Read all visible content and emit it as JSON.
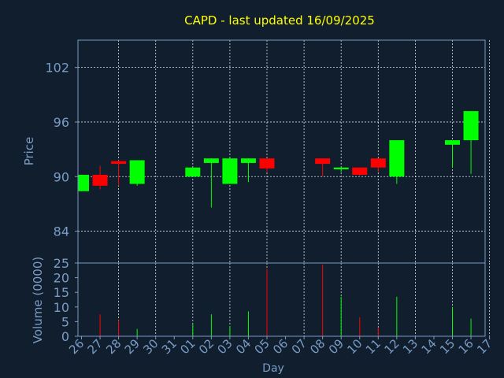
{
  "chart_data": {
    "type": "candlestick",
    "title": "CAPD - last updated 16/09/2025",
    "xlabel": "Day",
    "price_panel": {
      "ylabel": "Price",
      "yticks": [
        84,
        90,
        96,
        102
      ],
      "ylim": [
        80.5,
        105.0
      ]
    },
    "volume_panel": {
      "ylabel": "Volume (0000)",
      "yticks": [
        0,
        5,
        10,
        15,
        20,
        25
      ],
      "ylim": [
        0,
        25
      ]
    },
    "days": [
      "26",
      "27",
      "28",
      "29",
      "30",
      "31",
      "01",
      "02",
      "03",
      "04",
      "05",
      "06",
      "07",
      "08",
      "09",
      "10",
      "11",
      "12",
      "13",
      "14",
      "15",
      "16",
      "17"
    ],
    "candles": [
      {
        "day": 0,
        "open": 88.4,
        "close": 90.2,
        "high": 90.2,
        "low": 88.4,
        "volume": 0
      },
      {
        "day": 1,
        "open": 90.2,
        "close": 89.0,
        "high": 91.2,
        "low": 88.6,
        "volume": 7.5
      },
      {
        "day": 2,
        "open": 91.7,
        "close": 91.4,
        "high": 91.8,
        "low": 89.0,
        "volume": 5.5
      },
      {
        "day": 3,
        "open": 89.2,
        "close": 91.8,
        "high": 91.8,
        "low": 89.0,
        "volume": 2.5
      },
      {
        "day": 6,
        "open": 90.0,
        "close": 91.0,
        "high": 91.0,
        "low": 90.0,
        "volume": 4.0
      },
      {
        "day": 7,
        "open": 91.5,
        "close": 92.0,
        "high": 92.0,
        "low": 86.6,
        "volume": 7.5
      },
      {
        "day": 8,
        "open": 89.2,
        "close": 92.0,
        "high": 92.0,
        "low": 89.2,
        "volume": 3.5
      },
      {
        "day": 9,
        "open": 91.5,
        "close": 92.0,
        "high": 92.0,
        "low": 89.4,
        "volume": 8.5
      },
      {
        "day": 10,
        "open": 92.0,
        "close": 90.9,
        "high": 92.0,
        "low": 90.5,
        "volume": 23.0
      },
      {
        "day": 13,
        "open": 92.0,
        "close": 91.4,
        "high": 92.0,
        "low": 90.0,
        "volume": 24.5
      },
      {
        "day": 14,
        "open": 90.8,
        "close": 91.0,
        "high": 91.0,
        "low": 90.5,
        "volume": 13.5
      },
      {
        "day": 15,
        "open": 91.0,
        "close": 90.2,
        "high": 91.0,
        "low": 90.0,
        "volume": 6.5
      },
      {
        "day": 16,
        "open": 92.0,
        "close": 91.0,
        "high": 92.0,
        "low": 90.5,
        "volume": 3.0
      },
      {
        "day": 17,
        "open": 90.0,
        "close": 94.0,
        "high": 94.0,
        "low": 89.2,
        "volume": 13.5
      },
      {
        "day": 20,
        "open": 93.5,
        "close": 94.0,
        "high": 94.0,
        "low": 91.0,
        "volume": 10.0
      },
      {
        "day": 21,
        "open": 94.0,
        "close": 97.2,
        "high": 97.2,
        "low": 90.3,
        "volume": 6.0
      }
    ],
    "colors": {
      "up": "#00ff00",
      "down": "#ff0000",
      "title": "#ffff00",
      "axis_text": "#7a9cc5",
      "frame": "#7a9cc5",
      "grid": "#ffffff",
      "background": "#111e2e"
    }
  }
}
